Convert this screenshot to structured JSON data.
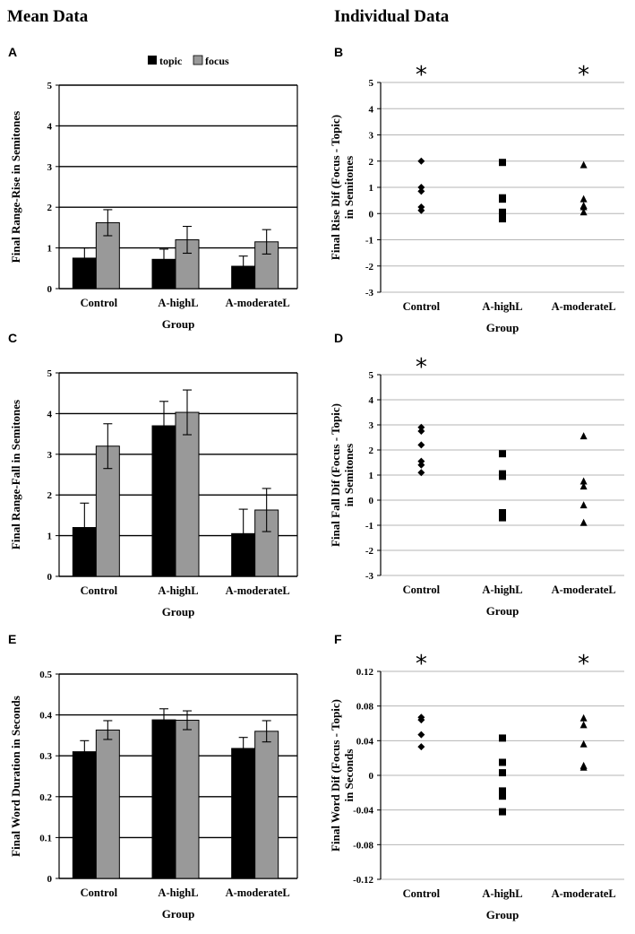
{
  "headers": {
    "left": "Mean Data",
    "right": "Individual Data"
  },
  "colors": {
    "topic": "#000000",
    "focus": "#999999",
    "grid": "#000000",
    "grid_light": "#b5b5b5"
  },
  "legend": {
    "topic": "topic",
    "focus": "focus"
  },
  "chart_data": [
    {
      "panel": "A",
      "type": "bar",
      "title": "",
      "categories": [
        "Control",
        "A-highL",
        "A-moderateL"
      ],
      "xlabel": "Group",
      "ylabel": "Final Range-Rise in Semitones",
      "ylim": [
        0,
        5
      ],
      "yticks": [
        "0",
        "1",
        "2",
        "3",
        "4",
        "5"
      ],
      "tick_values": [
        0,
        1,
        2,
        3,
        4,
        5
      ],
      "series": [
        {
          "name": "topic",
          "values": [
            0.75,
            0.72,
            0.55
          ],
          "errors": [
            0.25,
            0.25,
            0.25
          ]
        },
        {
          "name": "focus",
          "values": [
            1.62,
            1.2,
            1.15
          ],
          "errors": [
            0.32,
            0.33,
            0.3
          ]
        }
      ],
      "legend_position": "top"
    },
    {
      "panel": "B",
      "type": "scatter",
      "categories": [
        "Control",
        "A-highL",
        "A-moderateL"
      ],
      "xlabel": "Group",
      "ylabel": "Final Rise Dif (Focus - Topic) in Semitones",
      "ylim": [
        -3,
        5
      ],
      "yticks": [
        "-3",
        "-2",
        "-1",
        "0",
        "1",
        "2",
        "3",
        "4",
        "5"
      ],
      "tick_values": [
        -3,
        -2,
        -1,
        0,
        1,
        2,
        3,
        4,
        5
      ],
      "markers": [
        "diamond",
        "square",
        "triangle"
      ],
      "points": [
        [
          2.0,
          1.0,
          0.85,
          0.25,
          0.12
        ],
        [
          1.95,
          0.6,
          0.55,
          0.05,
          -0.2
        ],
        [
          1.85,
          0.55,
          0.3,
          0.25,
          0.05
        ]
      ],
      "significance": [
        "*",
        "",
        "*"
      ]
    },
    {
      "panel": "C",
      "type": "bar",
      "categories": [
        "Control",
        "A-highL",
        "A-moderateL"
      ],
      "xlabel": "Group",
      "ylabel": "Final Range-Fall in Semitones",
      "ylim": [
        0,
        5
      ],
      "yticks": [
        "0",
        "1",
        "2",
        "3",
        "4",
        "5"
      ],
      "tick_values": [
        0,
        1,
        2,
        3,
        4,
        5
      ],
      "series": [
        {
          "name": "topic",
          "values": [
            1.2,
            3.7,
            1.05
          ],
          "errors": [
            0.6,
            0.6,
            0.6
          ]
        },
        {
          "name": "focus",
          "values": [
            3.2,
            4.03,
            1.63
          ],
          "errors": [
            0.55,
            0.55,
            0.53
          ]
        }
      ]
    },
    {
      "panel": "D",
      "type": "scatter",
      "categories": [
        "Control",
        "A-highL",
        "A-moderateL"
      ],
      "xlabel": "Group",
      "ylabel": "Final Fall Dif (Focus - Topic) in Semitones",
      "ylim": [
        -3,
        5
      ],
      "yticks": [
        "-3",
        "-2",
        "-1",
        "0",
        "1",
        "2",
        "3",
        "4",
        "5"
      ],
      "tick_values": [
        -3,
        -2,
        -1,
        0,
        1,
        2,
        3,
        4,
        5
      ],
      "markers": [
        "diamond",
        "square",
        "triangle"
      ],
      "points": [
        [
          2.9,
          2.75,
          2.2,
          1.55,
          1.4,
          1.1
        ],
        [
          1.85,
          1.05,
          0.95,
          -0.5,
          -0.7
        ],
        [
          2.55,
          0.75,
          0.55,
          -0.2,
          -0.9
        ]
      ],
      "significance": [
        "*",
        "",
        ""
      ]
    },
    {
      "panel": "E",
      "type": "bar",
      "categories": [
        "Control",
        "A-highL",
        "A-moderateL"
      ],
      "xlabel": "Group",
      "ylabel": "Final Word Duration in Seconds",
      "ylim": [
        0,
        0.5
      ],
      "yticks": [
        "0",
        "0.1",
        "0.2",
        "0.3",
        "0.4",
        "0.5"
      ],
      "tick_values": [
        0,
        0.1,
        0.2,
        0.3,
        0.4,
        0.5
      ],
      "series": [
        {
          "name": "topic",
          "values": [
            0.31,
            0.388,
            0.318
          ],
          "errors": [
            0.027,
            0.027,
            0.027
          ]
        },
        {
          "name": "focus",
          "values": [
            0.363,
            0.387,
            0.36
          ],
          "errors": [
            0.023,
            0.023,
            0.026
          ]
        }
      ]
    },
    {
      "panel": "F",
      "type": "scatter",
      "categories": [
        "Control",
        "A-highL",
        "A-moderateL"
      ],
      "xlabel": "Group",
      "ylabel": "Final Word Dif (Focus - Topic) in Seconds",
      "ylim": [
        -0.12,
        0.12
      ],
      "yticks": [
        "-0.12",
        "-0.08",
        "-0.04",
        "0",
        "0.04",
        "0.08",
        "0.12"
      ],
      "tick_values": [
        -0.12,
        -0.08,
        -0.04,
        0,
        0.04,
        0.08,
        0.12
      ],
      "markers": [
        "diamond",
        "square",
        "triangle"
      ],
      "points": [
        [
          0.067,
          0.064,
          0.047,
          0.033
        ],
        [
          0.043,
          0.015,
          0.003,
          -0.018,
          -0.024,
          -0.042
        ],
        [
          0.066,
          0.058,
          0.036,
          0.011,
          0.009
        ]
      ],
      "significance": [
        "*",
        "",
        "*"
      ]
    }
  ]
}
